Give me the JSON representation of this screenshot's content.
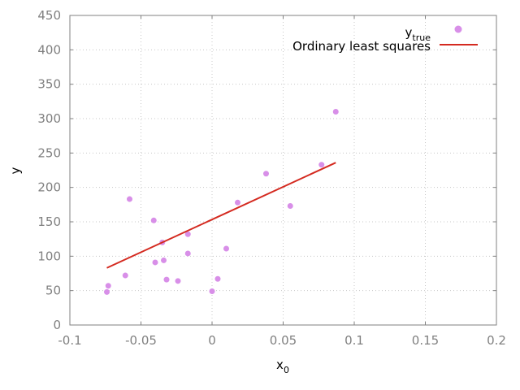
{
  "chart_data": {
    "type": "scatter",
    "title": "",
    "xlabel": "x",
    "xlabel_sub": "0",
    "ylabel": "y",
    "xlim": [
      -0.1,
      0.2
    ],
    "ylim": [
      0,
      450
    ],
    "xticks": [
      -0.1,
      -0.05,
      0,
      0.05,
      0.1,
      0.15,
      0.2
    ],
    "xtick_labels": [
      "-0.1",
      "-0.05",
      "0",
      "0.05",
      "0.1",
      "0.15",
      "0.2"
    ],
    "yticks": [
      0,
      50,
      100,
      150,
      200,
      250,
      300,
      350,
      400,
      450
    ],
    "ytick_labels": [
      "0",
      "50",
      "100",
      "150",
      "200",
      "250",
      "300",
      "350",
      "400",
      "450"
    ],
    "grid": true,
    "legend_position": "top-right",
    "series": [
      {
        "name": "y",
        "name_sub": "true",
        "kind": "scatter",
        "color": "#d88fe8",
        "points": [
          {
            "x": -0.074,
            "y": 48
          },
          {
            "x": -0.073,
            "y": 57
          },
          {
            "x": -0.061,
            "y": 72
          },
          {
            "x": -0.058,
            "y": 183
          },
          {
            "x": -0.041,
            "y": 152
          },
          {
            "x": -0.04,
            "y": 91
          },
          {
            "x": -0.035,
            "y": 120
          },
          {
            "x": -0.034,
            "y": 94
          },
          {
            "x": -0.032,
            "y": 66
          },
          {
            "x": -0.024,
            "y": 64
          },
          {
            "x": -0.017,
            "y": 132
          },
          {
            "x": -0.017,
            "y": 104
          },
          {
            "x": 0.0,
            "y": 49
          },
          {
            "x": 0.004,
            "y": 67
          },
          {
            "x": 0.01,
            "y": 111
          },
          {
            "x": 0.018,
            "y": 178
          },
          {
            "x": 0.038,
            "y": 220
          },
          {
            "x": 0.055,
            "y": 173
          },
          {
            "x": 0.077,
            "y": 233
          },
          {
            "x": 0.087,
            "y": 310
          }
        ]
      },
      {
        "name": "Ordinary least squares",
        "kind": "line",
        "color": "#d42a20",
        "points": [
          {
            "x": -0.074,
            "y": 83
          },
          {
            "x": 0.087,
            "y": 236
          }
        ]
      }
    ]
  }
}
